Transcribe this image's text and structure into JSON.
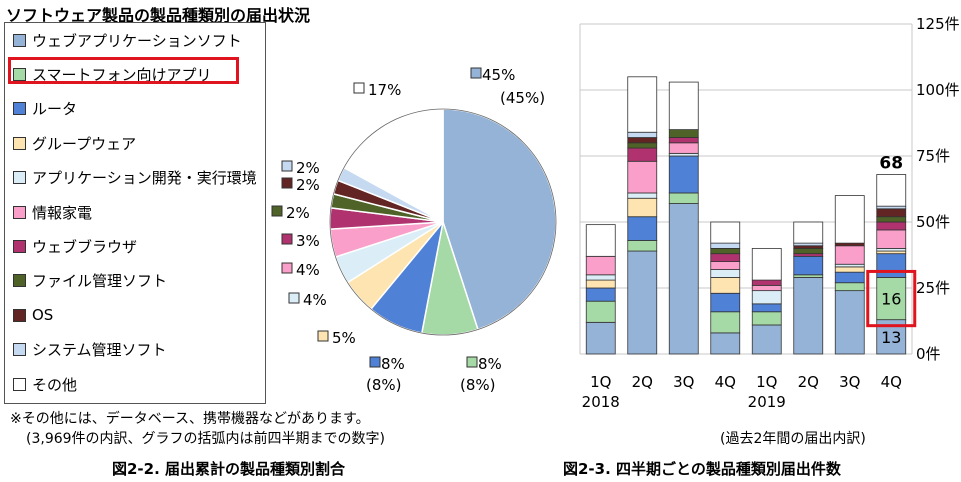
{
  "title": "ソフトウェア製品の製品種類別の届出状況",
  "notes": {
    "line1": "※その他には、データベース、携帯機器などがあります。",
    "line2": "(3,969件の内訳、グラフの括弧内は前四半期までの数字)",
    "right": "(過去2年間の届出内訳)"
  },
  "captions": {
    "left": "図2-2. 届出累計の製品種類別割合",
    "right": "図2-3. 四半期ごとの製品種類別届出件数"
  },
  "legend": [
    {
      "label": "ウェブアプリケーションソフト",
      "color": "#95b3d7"
    },
    {
      "label": "スマートフォン向けアプリ",
      "color": "#a5d9a5"
    },
    {
      "label": "ルータ",
      "color": "#4f81d6"
    },
    {
      "label": "グループウェア",
      "color": "#fde4b0"
    },
    {
      "label": "アプリケーション開発・実行環境",
      "color": "#dbeef7"
    },
    {
      "label": "情報家電",
      "color": "#f99fc9"
    },
    {
      "label": "ウェブブラウザ",
      "color": "#b0336f"
    },
    {
      "label": "ファイル管理ソフト",
      "color": "#4f6228"
    },
    {
      "label": "OS",
      "color": "#632523"
    },
    {
      "label": "システム管理ソフト",
      "color": "#c5d9f1"
    },
    {
      "label": "その他",
      "color": "#ffffff"
    }
  ],
  "chart_data": [
    {
      "type": "pie",
      "slices": [
        {
          "category": "ウェブアプリケーションソフト",
          "value": 45,
          "label": "45%",
          "prev": "(45%)"
        },
        {
          "category": "スマートフォン向けアプリ",
          "value": 8,
          "label": "8%",
          "prev": "(8%)"
        },
        {
          "category": "ルータ",
          "value": 8,
          "label": "8%",
          "prev": "(8%)"
        },
        {
          "category": "グループウェア",
          "value": 5,
          "label": "5%",
          "prev": ""
        },
        {
          "category": "アプリケーション開発・実行環境",
          "value": 4,
          "label": "4%",
          "prev": ""
        },
        {
          "category": "情報家電",
          "value": 4,
          "label": "4%",
          "prev": ""
        },
        {
          "category": "ウェブブラウザ",
          "value": 3,
          "label": "3%",
          "prev": ""
        },
        {
          "category": "ファイル管理ソフト",
          "value": 2,
          "label": "2%",
          "prev": ""
        },
        {
          "category": "OS",
          "value": 2,
          "label": "2%",
          "prev": ""
        },
        {
          "category": "システム管理ソフト",
          "value": 2,
          "label": "2%",
          "prev": ""
        },
        {
          "category": "その他",
          "value": 17,
          "label": "17%",
          "prev": ""
        }
      ]
    },
    {
      "type": "bar",
      "stacked": true,
      "categories": [
        "1Q",
        "2Q",
        "3Q",
        "4Q",
        "1Q",
        "2Q",
        "3Q",
        "4Q"
      ],
      "year_labels": [
        {
          "index": 0,
          "label": "2018"
        },
        {
          "index": 4,
          "label": "2019"
        }
      ],
      "ylim": [
        0,
        125
      ],
      "yticks": [
        {
          "v": 0,
          "label": "0件"
        },
        {
          "v": 25,
          "label": "25件"
        },
        {
          "v": 50,
          "label": "50件"
        },
        {
          "v": 75,
          "label": "75件"
        },
        {
          "v": 100,
          "label": "100件"
        },
        {
          "v": 125,
          "label": "125件"
        }
      ],
      "series": [
        {
          "category": "ウェブアプリケーションソフト",
          "values": [
            12,
            39,
            57,
            8,
            11,
            29,
            24,
            13
          ]
        },
        {
          "category": "スマートフォン向けアプリ",
          "values": [
            8,
            4,
            4,
            8,
            5,
            1,
            3,
            16
          ]
        },
        {
          "category": "ルータ",
          "values": [
            5,
            9,
            14,
            7,
            3,
            7,
            4,
            9
          ]
        },
        {
          "category": "グループウェア",
          "values": [
            3,
            7,
            0,
            6,
            0,
            0,
            2,
            1
          ]
        },
        {
          "category": "アプリケーション開発・実行環境",
          "values": [
            2,
            2,
            1,
            3,
            5,
            0,
            1,
            1
          ]
        },
        {
          "category": "情報家電",
          "values": [
            7,
            12,
            4,
            3,
            2,
            0,
            7,
            7
          ]
        },
        {
          "category": "ウェブブラウザ",
          "values": [
            0,
            5,
            2,
            3,
            2,
            1,
            0,
            3
          ]
        },
        {
          "category": "ファイル管理ソフト",
          "values": [
            0,
            2,
            3,
            2,
            0,
            2,
            0,
            2
          ]
        },
        {
          "category": "OS",
          "values": [
            0,
            2,
            0,
            0,
            0,
            1,
            1,
            3
          ]
        },
        {
          "category": "システム管理ソフト",
          "values": [
            0,
            2,
            0,
            2,
            0,
            1,
            0,
            1
          ]
        },
        {
          "category": "その他",
          "values": [
            12,
            21,
            18,
            8,
            12,
            8,
            18,
            12
          ]
        }
      ],
      "annotations": {
        "total_last": "68",
        "seg_16": "16",
        "seg_13": "13"
      }
    }
  ]
}
